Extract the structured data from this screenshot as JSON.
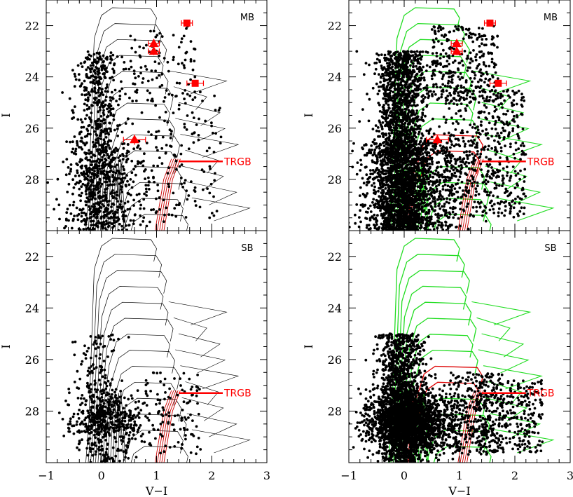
{
  "chart_data": [
    {
      "type": "scatter",
      "panel": "top-left",
      "label": "MB",
      "xlabel": "",
      "ylabel": "I",
      "xlim": [
        -1,
        3
      ],
      "ylim": [
        30,
        21
      ],
      "xticks": [
        -1,
        0,
        1,
        2,
        3
      ],
      "yticks": [
        22,
        24,
        26,
        28
      ],
      "isochrone_color": "#000000",
      "star_density": "medium",
      "trgb": {
        "label": "TRGB",
        "x": [
          1.4,
          2.2
        ],
        "y": 27.3
      },
      "highlights": [
        {
          "marker": "square",
          "x": 1.55,
          "y": 21.9,
          "xerr": 0.1,
          "yerr": 0.1
        },
        {
          "marker": "triangle",
          "x": 0.95,
          "y": 22.7,
          "xerr": 0.1,
          "yerr": 0.15
        },
        {
          "marker": "triangle",
          "x": 0.95,
          "y": 23.0,
          "xerr": 0.1,
          "yerr": 0.15
        },
        {
          "marker": "square",
          "x": 1.7,
          "y": 24.25,
          "xerr": 0.15,
          "yerr": 0.1
        },
        {
          "marker": "triangle",
          "x": 0.6,
          "y": 26.45,
          "xerr": 0.2,
          "yerr": 0.2
        }
      ]
    },
    {
      "type": "scatter",
      "panel": "top-right",
      "label": "MB",
      "xlabel": "",
      "ylabel": "I",
      "xlim": [
        -1,
        3
      ],
      "ylim": [
        30,
        21
      ],
      "xticks": [
        -1,
        0,
        1,
        2,
        3
      ],
      "yticks": [
        22,
        24,
        26,
        28
      ],
      "isochrone_color": "#22dd22",
      "star_density": "high",
      "trgb": {
        "label": "TRGB",
        "x": [
          1.4,
          2.2
        ],
        "y": 27.3
      },
      "highlights": [
        {
          "marker": "square",
          "x": 1.55,
          "y": 21.9,
          "xerr": 0.1,
          "yerr": 0.1
        },
        {
          "marker": "triangle",
          "x": 0.95,
          "y": 22.7,
          "xerr": 0.1,
          "yerr": 0.15
        },
        {
          "marker": "triangle",
          "x": 0.95,
          "y": 23.0,
          "xerr": 0.1,
          "yerr": 0.15
        },
        {
          "marker": "square",
          "x": 1.7,
          "y": 24.25,
          "xerr": 0.15,
          "yerr": 0.1
        },
        {
          "marker": "triangle",
          "x": 0.6,
          "y": 26.45,
          "xerr": 0.2,
          "yerr": 0.2
        }
      ]
    },
    {
      "type": "scatter",
      "panel": "bottom-left",
      "label": "SB",
      "xlabel": "V−I",
      "ylabel": "I",
      "xlim": [
        -1,
        3
      ],
      "ylim": [
        30,
        21
      ],
      "xticks": [
        -1,
        0,
        1,
        2,
        3
      ],
      "yticks": [
        22,
        24,
        26,
        28
      ],
      "isochrone_color": "#000000",
      "star_density": "low",
      "trgb": {
        "label": "TRGB",
        "x": [
          1.4,
          2.2
        ],
        "y": 27.3
      },
      "highlights": []
    },
    {
      "type": "scatter",
      "panel": "bottom-right",
      "label": "SB",
      "xlabel": "V−I",
      "ylabel": "I",
      "xlim": [
        -1,
        3
      ],
      "ylim": [
        30,
        21
      ],
      "xticks": [
        -1,
        0,
        1,
        2,
        3
      ],
      "yticks": [
        22,
        24,
        26,
        28
      ],
      "isochrone_color": "#22dd22",
      "star_density": "high",
      "trgb": {
        "label": "TRGB",
        "x": [
          1.4,
          2.2
        ],
        "y": 27.3
      },
      "highlights": []
    }
  ],
  "colors": {
    "highlight": "#ff0000",
    "rgb_isochrones": "#cc0000",
    "stars": "#000000"
  }
}
